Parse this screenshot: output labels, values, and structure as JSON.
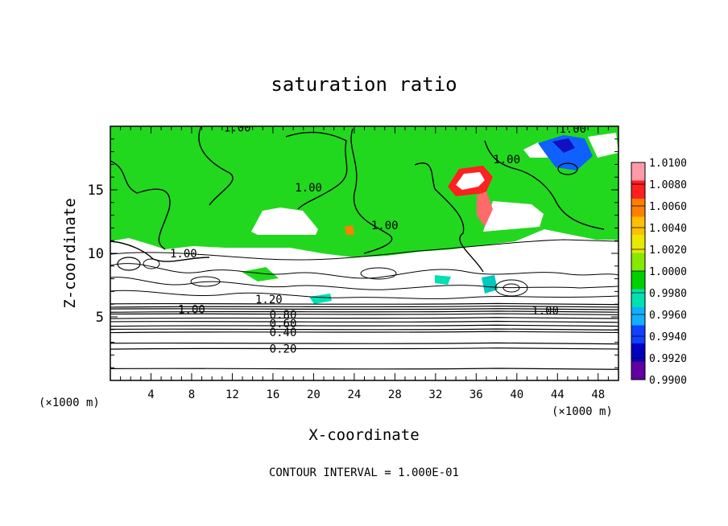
{
  "chart_data": {
    "type": "heatmap",
    "title": "saturation ratio",
    "xlabel": "X-coordinate",
    "ylabel": "Z-coordinate",
    "x_unit_label": "(×1000 m)",
    "y_unit_label": "(×1000 m)",
    "footer": "CONTOUR INTERVAL = 1.000E-01",
    "xlim": [
      0,
      50
    ],
    "ylim": [
      0,
      20
    ],
    "x_ticks": [
      "4",
      "8",
      "12",
      "16",
      "20",
      "24",
      "28",
      "32",
      "36",
      "40",
      "44",
      "48"
    ],
    "y_ticks": [
      "5",
      "10",
      "15"
    ],
    "colorbar": {
      "levels": [
        "1.0100",
        "1.0080",
        "1.0060",
        "1.0040",
        "1.0020",
        "1.0000",
        "0.9980",
        "0.9960",
        "0.9940",
        "0.9920",
        "0.9900"
      ],
      "colors": [
        "#ff9aa8",
        "#ff2020",
        "#ff8000",
        "#ffc000",
        "#e8e800",
        "#88e800",
        "#00d000",
        "#00e0b0",
        "#10b0ff",
        "#1040ff",
        "#0000c0",
        "#6000a0"
      ]
    },
    "fill_regions": [
      {
        "name": "upper-green-field",
        "value_range": [
          1.0,
          1.002
        ],
        "x": [
          0,
          50
        ],
        "z": [
          10.5,
          20
        ]
      },
      {
        "name": "white-mid-band",
        "value_range": [
          "above",
          1.01
        ],
        "x": [
          0,
          50
        ],
        "z": [
          6,
          10.5
        ]
      },
      {
        "name": "lower-white-band",
        "value_range": [
          "below",
          0.99
        ],
        "x": [
          0,
          50
        ],
        "z": [
          0,
          5.5
        ]
      }
    ],
    "contour_labels": [
      {
        "text": "1.00",
        "x": 12.5,
        "z": 19.9
      },
      {
        "text": "1.00",
        "x": 45.5,
        "z": 19.8
      },
      {
        "text": "1.00",
        "x": 39,
        "z": 17.4
      },
      {
        "text": "1.00",
        "x": 19.5,
        "z": 15.2
      },
      {
        "text": "1.00",
        "x": 27,
        "z": 12.2
      },
      {
        "text": "1.00",
        "x": 7.2,
        "z": 10.0
      },
      {
        "text": "1.20",
        "x": 15.6,
        "z": 6.4
      },
      {
        "text": "1.00",
        "x": 8.0,
        "z": 5.6
      },
      {
        "text": "0.80",
        "x": 17.0,
        "z": 5.2
      },
      {
        "text": "0.60",
        "x": 17.0,
        "z": 4.5
      },
      {
        "text": "0.40",
        "x": 17.0,
        "z": 3.8
      },
      {
        "text": "0.20",
        "x": 17.0,
        "z": 2.5
      },
      {
        "text": "1.00",
        "x": 42.8,
        "z": 5.5
      }
    ],
    "horizontal_contour_levels_z": [
      0.9,
      2.5,
      2.9,
      3.8,
      4.0,
      4.3,
      4.6,
      4.9,
      5.2,
      5.4,
      5.6,
      5.8,
      6.0
    ]
  }
}
